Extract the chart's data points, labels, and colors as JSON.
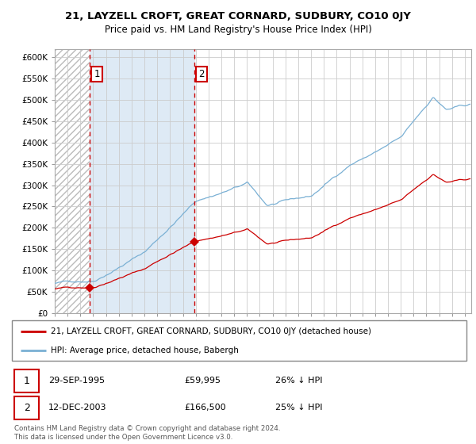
{
  "title": "21, LAYZELL CROFT, GREAT CORNARD, SUDBURY, CO10 0JY",
  "subtitle": "Price paid vs. HM Land Registry's House Price Index (HPI)",
  "sale1_label": "29-SEP-1995",
  "sale1_price": 59995,
  "sale1_hpi_text": "26% ↓ HPI",
  "sale1_year": 1995.75,
  "sale2_label": "12-DEC-2003",
  "sale2_price": 166500,
  "sale2_hpi_text": "25% ↓ HPI",
  "sale2_year": 2003.917,
  "legend_line1": "21, LAYZELL CROFT, GREAT CORNARD, SUDBURY, CO10 0JY (detached house)",
  "legend_line2": "HPI: Average price, detached house, Babergh",
  "footer": "Contains HM Land Registry data © Crown copyright and database right 2024.\nThis data is licensed under the Open Government Licence v3.0.",
  "line_color_red": "#cc0000",
  "line_color_blue": "#7ab0d4",
  "shade_color": "#deeaf5",
  "hatch_color": "#d0d0d0",
  "grid_color": "#cccccc",
  "ylim_min": 0,
  "ylim_max": 620000,
  "ytick_step": 50000,
  "xlim_min": 1993.0,
  "xlim_max": 2025.5
}
